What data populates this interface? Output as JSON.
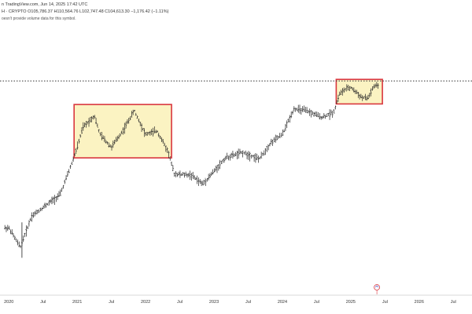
{
  "header": {
    "line1": "n TradingView.com, Jun 14, 2025 17:42 UTC",
    "line2": "H · CRYPTO  O105,786.37  H110,564.76  L102,747.48  C104,613.30  −1,176.42 (−1.11%)",
    "line3": "oesn't provide volume data for this symbol."
  },
  "colors": {
    "bar_up": "#222222",
    "box_stroke": "#d9363e",
    "box_fill": "#fbf3c2",
    "dotted_line": "#333333",
    "axis": "#cccccc"
  },
  "chart_data": {
    "type": "ohlc",
    "x_axis_ticks": [
      "2020",
      "Jul",
      "2021",
      "Jul",
      "2022",
      "Jul",
      "2023",
      "Jul",
      "2024",
      "Jul",
      "2025",
      "Jul",
      "2026",
      "Jul"
    ],
    "x_range": [
      "2019-12",
      "2026-10"
    ],
    "y_scale": "log",
    "series_shape": [
      {
        "date": "2020-01",
        "price": 7200
      },
      {
        "date": "2020-03",
        "price": 5000
      },
      {
        "date": "2020-05",
        "price": 9000
      },
      {
        "date": "2020-08",
        "price": 11500
      },
      {
        "date": "2020-10",
        "price": 13500
      },
      {
        "date": "2020-12",
        "price": 24000
      },
      {
        "date": "2021-01",
        "price": 33000
      },
      {
        "date": "2021-02",
        "price": 48000
      },
      {
        "date": "2021-04",
        "price": 60000
      },
      {
        "date": "2021-05",
        "price": 42000
      },
      {
        "date": "2021-07",
        "price": 33000
      },
      {
        "date": "2021-09",
        "price": 45000
      },
      {
        "date": "2021-11",
        "price": 66000
      },
      {
        "date": "2022-01",
        "price": 42000
      },
      {
        "date": "2022-03",
        "price": 45000
      },
      {
        "date": "2022-05",
        "price": 30000
      },
      {
        "date": "2022-06",
        "price": 20000
      },
      {
        "date": "2022-09",
        "price": 19500
      },
      {
        "date": "2022-11",
        "price": 16500
      },
      {
        "date": "2023-01",
        "price": 21000
      },
      {
        "date": "2023-03",
        "price": 27000
      },
      {
        "date": "2023-06",
        "price": 30000
      },
      {
        "date": "2023-09",
        "price": 26500
      },
      {
        "date": "2023-11",
        "price": 36000
      },
      {
        "date": "2024-01",
        "price": 42000
      },
      {
        "date": "2024-03",
        "price": 68000
      },
      {
        "date": "2024-05",
        "price": 66000
      },
      {
        "date": "2024-08",
        "price": 58000
      },
      {
        "date": "2024-10",
        "price": 64000
      },
      {
        "date": "2024-11",
        "price": 90000
      },
      {
        "date": "2024-12",
        "price": 98000
      },
      {
        "date": "2025-01",
        "price": 102000
      },
      {
        "date": "2025-03",
        "price": 84000
      },
      {
        "date": "2025-04",
        "price": 83000
      },
      {
        "date": "2025-05",
        "price": 103000
      },
      {
        "date": "2025-06",
        "price": 106000
      }
    ],
    "highlight_boxes": [
      {
        "from": "2021-01",
        "to": "2022-05"
      },
      {
        "from": "2024-11",
        "to": "2025-06"
      }
    ],
    "horizontal_reference": {
      "style": "dotted",
      "level": "2025 high"
    },
    "grid": false,
    "legend": "none"
  }
}
